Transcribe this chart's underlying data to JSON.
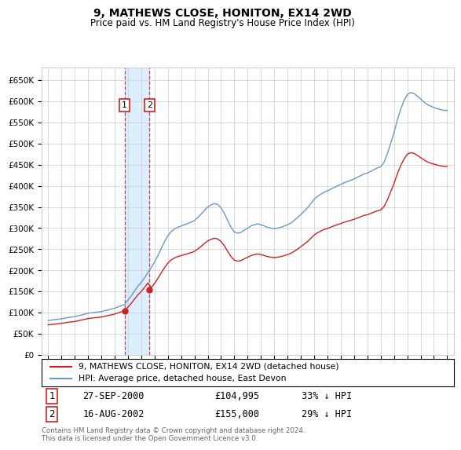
{
  "title": "9, MATHEWS CLOSE, HONITON, EX14 2WD",
  "subtitle": "Price paid vs. HM Land Registry's House Price Index (HPI)",
  "footer": "Contains HM Land Registry data © Crown copyright and database right 2024.\nThis data is licensed under the Open Government Licence v3.0.",
  "legend_line1": "9, MATHEWS CLOSE, HONITON, EX14 2WD (detached house)",
  "legend_line2": "HPI: Average price, detached house, East Devon",
  "transaction1_label": "1",
  "transaction1_date": "27-SEP-2000",
  "transaction1_price": "£104,995",
  "transaction1_hpi": "33% ↓ HPI",
  "transaction2_label": "2",
  "transaction2_date": "16-AUG-2002",
  "transaction2_price": "£155,000",
  "transaction2_hpi": "29% ↓ HPI",
  "hpi_color": "#6699cc",
  "sale_color": "#cc2222",
  "shading_color": "#ddeeff",
  "grid_color": "#cccccc",
  "background_color": "#ffffff",
  "ylim_min": 0,
  "ylim_max": 680000,
  "yticks": [
    0,
    50000,
    100000,
    150000,
    200000,
    250000,
    300000,
    350000,
    400000,
    450000,
    500000,
    550000,
    600000,
    650000
  ],
  "sale1_year": 2000.75,
  "sale2_year": 2002.625,
  "sale1_price": 104995,
  "sale2_price": 155000,
  "xmin": 1994.5,
  "xmax": 2025.5,
  "hpi_data_years": [
    1995,
    1995.25,
    1995.5,
    1995.75,
    1996,
    1996.25,
    1996.5,
    1996.75,
    1997,
    1997.25,
    1997.5,
    1997.75,
    1998,
    1998.25,
    1998.5,
    1998.75,
    1999,
    1999.25,
    1999.5,
    1999.75,
    2000,
    2000.25,
    2000.5,
    2000.75,
    2001,
    2001.25,
    2001.5,
    2001.75,
    2002,
    2002.25,
    2002.5,
    2002.75,
    2003,
    2003.25,
    2003.5,
    2003.75,
    2004,
    2004.25,
    2004.5,
    2004.75,
    2005,
    2005.25,
    2005.5,
    2005.75,
    2006,
    2006.25,
    2006.5,
    2006.75,
    2007,
    2007.25,
    2007.5,
    2007.75,
    2008,
    2008.25,
    2008.5,
    2008.75,
    2009,
    2009.25,
    2009.5,
    2009.75,
    2010,
    2010.25,
    2010.5,
    2010.75,
    2011,
    2011.25,
    2011.5,
    2011.75,
    2012,
    2012.25,
    2012.5,
    2012.75,
    2013,
    2013.25,
    2013.5,
    2013.75,
    2014,
    2014.25,
    2014.5,
    2014.75,
    2015,
    2015.25,
    2015.5,
    2015.75,
    2016,
    2016.25,
    2016.5,
    2016.75,
    2017,
    2017.25,
    2017.5,
    2017.75,
    2018,
    2018.25,
    2018.5,
    2018.75,
    2019,
    2019.25,
    2019.5,
    2019.75,
    2020,
    2020.25,
    2020.5,
    2020.75,
    2021,
    2021.25,
    2021.5,
    2021.75,
    2022,
    2022.25,
    2022.5,
    2022.75,
    2023,
    2023.25,
    2023.5,
    2023.75,
    2024,
    2024.25,
    2024.5,
    2024.75,
    2025
  ],
  "hpi_data_values": [
    82000,
    83000,
    84000,
    85000,
    86000,
    87500,
    89000,
    90000,
    91000,
    93000,
    95000,
    97000,
    99000,
    100000,
    101000,
    102000,
    103000,
    105000,
    107000,
    109000,
    111000,
    114000,
    117000,
    120000,
    130000,
    140000,
    152000,
    163000,
    172000,
    183000,
    195000,
    207000,
    220000,
    235000,
    252000,
    268000,
    282000,
    292000,
    298000,
    302000,
    305000,
    308000,
    311000,
    314000,
    318000,
    325000,
    333000,
    342000,
    350000,
    355000,
    358000,
    356000,
    348000,
    335000,
    318000,
    302000,
    291000,
    288000,
    290000,
    295000,
    300000,
    305000,
    308000,
    310000,
    308000,
    305000,
    302000,
    300000,
    299000,
    300000,
    302000,
    305000,
    308000,
    312000,
    318000,
    325000,
    332000,
    340000,
    348000,
    358000,
    368000,
    375000,
    380000,
    385000,
    388000,
    392000,
    396000,
    400000,
    403000,
    407000,
    410000,
    413000,
    416000,
    420000,
    424000,
    428000,
    430000,
    434000,
    438000,
    442000,
    445000,
    455000,
    475000,
    500000,
    525000,
    555000,
    580000,
    600000,
    615000,
    620000,
    618000,
    612000,
    605000,
    598000,
    592000,
    588000,
    585000,
    582000,
    580000,
    578000,
    578000
  ]
}
